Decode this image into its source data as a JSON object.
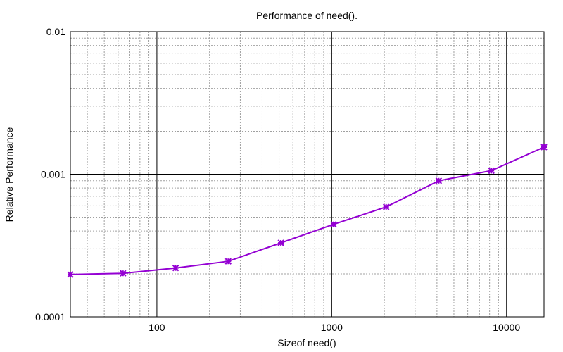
{
  "chart_data": {
    "type": "line",
    "title": "Performance of need().",
    "xlabel": "Sizeof need()",
    "ylabel": "Relative Performance",
    "x_scale": "log",
    "y_scale": "log",
    "xlim": [
      32,
      16384
    ],
    "ylim": [
      0.0001,
      0.01
    ],
    "x_ticks": [
      {
        "value": 100,
        "label": "100"
      },
      {
        "value": 1000,
        "label": "1000"
      },
      {
        "value": 10000,
        "label": "10000"
      }
    ],
    "y_ticks": [
      {
        "value": 0.0001,
        "label": "0.0001"
      },
      {
        "value": 0.001,
        "label": "0.001"
      },
      {
        "value": 0.01,
        "label": "0.01"
      }
    ],
    "grid": true,
    "legend": "none",
    "series": [
      {
        "color": "#9400d3",
        "marker": "x-star",
        "x": [
          32,
          64,
          128,
          256,
          512,
          1024,
          2048,
          4096,
          8192,
          16384
        ],
        "y": [
          0.000198,
          0.000202,
          0.00022,
          0.000245,
          0.00033,
          0.000445,
          0.00059,
          0.0009,
          0.00106,
          0.00155
        ]
      }
    ]
  }
}
